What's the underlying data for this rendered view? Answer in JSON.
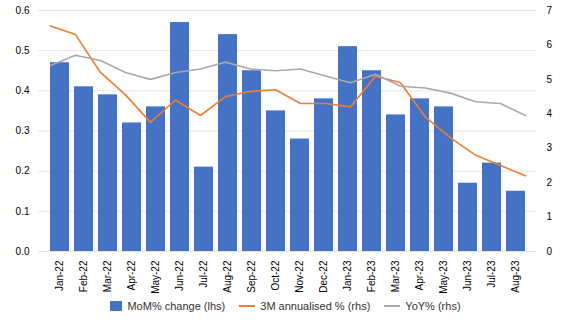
{
  "chart_data": {
    "type": "bar",
    "categories": [
      "Jan-22",
      "Feb-22",
      "Mar-22",
      "Apr-22",
      "May-22",
      "Jun-22",
      "Jul-22",
      "Aug-22",
      "Sep-22",
      "Oct-22",
      "Nov-22",
      "Dec-22",
      "Jan-23",
      "Feb-23",
      "Mar-23",
      "Apr-23",
      "May-23",
      "Jun-23",
      "Jul-23",
      "Aug-23"
    ],
    "series": [
      {
        "name": "MoM% change (lhs)",
        "type": "bar",
        "color": "#4472c4",
        "values": [
          0.47,
          0.41,
          0.39,
          0.32,
          0.36,
          0.57,
          0.21,
          0.54,
          0.45,
          0.35,
          0.28,
          0.38,
          0.51,
          0.45,
          0.34,
          0.38,
          0.36,
          0.17,
          0.22,
          0.15
        ]
      },
      {
        "name": "3M annualised % (rhs)",
        "type": "line",
        "color": "#ed7d31",
        "axis": "y2",
        "values": [
          6.55,
          6.3,
          5.2,
          4.55,
          3.75,
          4.4,
          3.95,
          4.5,
          4.65,
          4.7,
          4.3,
          4.3,
          4.2,
          5.1,
          4.9,
          3.9,
          3.3,
          2.8,
          2.5,
          2.2
        ]
      },
      {
        "name": "YoY% (rhs)",
        "type": "line",
        "color": "#a9a9a9",
        "axis": "y2",
        "values": [
          5.4,
          5.7,
          5.55,
          5.2,
          5.0,
          5.2,
          5.3,
          5.5,
          5.3,
          5.25,
          5.3,
          5.1,
          4.9,
          5.15,
          4.8,
          4.75,
          4.6,
          4.35,
          4.3,
          3.95
        ]
      }
    ],
    "ylim": [
      0,
      0.6
    ],
    "yticks": [
      {
        "value": 0,
        "label": "0.0"
      },
      0.1,
      0.2,
      0.3,
      0.4,
      0.5,
      0.6
    ],
    "y2lim": [
      0,
      7
    ],
    "y2ticks": [
      0,
      1,
      2,
      3,
      4,
      5,
      6,
      7
    ],
    "grid": true,
    "legend": "bottom"
  }
}
